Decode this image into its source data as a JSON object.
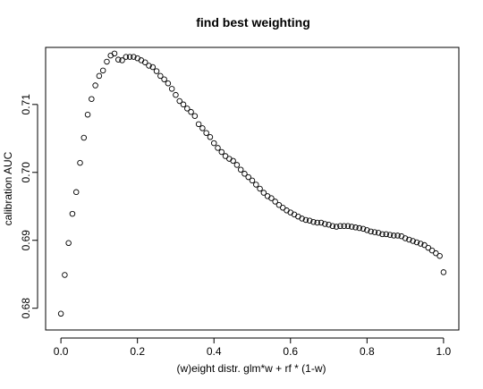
{
  "chart_data": {
    "type": "scatter",
    "title": "find best weighting",
    "xlabel": "(w)eight distr.  glm*w + rf * (1-w)",
    "ylabel": "calibration AUC",
    "xlim": [
      -0.04,
      1.04
    ],
    "ylim": [
      0.6768,
      0.7184
    ],
    "x_ticks": [
      0.0,
      0.2,
      0.4,
      0.6,
      0.8,
      1.0
    ],
    "x_tick_labels": [
      "0.0",
      "0.2",
      "0.4",
      "0.6",
      "0.8",
      "1.0"
    ],
    "y_ticks": [
      0.68,
      0.69,
      0.7,
      0.71
    ],
    "y_tick_labels": [
      "0.68",
      "0.69",
      "0.70",
      "0.71"
    ],
    "grid": false,
    "marker": "open-circle",
    "x": [
      0.0,
      0.01,
      0.02,
      0.03,
      0.04,
      0.05,
      0.06,
      0.07,
      0.08,
      0.09,
      0.1,
      0.11,
      0.12,
      0.13,
      0.14,
      0.15,
      0.16,
      0.17,
      0.18,
      0.19,
      0.2,
      0.21,
      0.22,
      0.23,
      0.24,
      0.25,
      0.26,
      0.27,
      0.28,
      0.29,
      0.3,
      0.31,
      0.32,
      0.33,
      0.34,
      0.35,
      0.36,
      0.37,
      0.38,
      0.39,
      0.4,
      0.41,
      0.42,
      0.43,
      0.44,
      0.45,
      0.46,
      0.47,
      0.48,
      0.49,
      0.5,
      0.51,
      0.52,
      0.53,
      0.54,
      0.55,
      0.56,
      0.57,
      0.58,
      0.59,
      0.6,
      0.61,
      0.62,
      0.63,
      0.64,
      0.65,
      0.66,
      0.67,
      0.68,
      0.69,
      0.7,
      0.71,
      0.72,
      0.73,
      0.74,
      0.75,
      0.76,
      0.77,
      0.78,
      0.79,
      0.8,
      0.81,
      0.82,
      0.83,
      0.84,
      0.85,
      0.86,
      0.87,
      0.88,
      0.89,
      0.9,
      0.91,
      0.92,
      0.93,
      0.94,
      0.95,
      0.96,
      0.97,
      0.98,
      0.99,
      1.0
    ],
    "y": [
      0.6792,
      0.6849,
      0.6896,
      0.6939,
      0.6971,
      0.7014,
      0.7051,
      0.7085,
      0.7108,
      0.7128,
      0.7142,
      0.715,
      0.7163,
      0.7172,
      0.7175,
      0.7166,
      0.7165,
      0.717,
      0.717,
      0.717,
      0.7168,
      0.7165,
      0.7162,
      0.7157,
      0.7155,
      0.7149,
      0.7142,
      0.7137,
      0.7131,
      0.7123,
      0.7114,
      0.7105,
      0.71,
      0.7094,
      0.7089,
      0.7083,
      0.7071,
      0.7065,
      0.7058,
      0.7052,
      0.7043,
      0.7036,
      0.703,
      0.7024,
      0.702,
      0.7017,
      0.7011,
      0.7004,
      0.6998,
      0.6993,
      0.6988,
      0.6982,
      0.6976,
      0.697,
      0.6965,
      0.6962,
      0.6957,
      0.6952,
      0.6948,
      0.6944,
      0.6941,
      0.6938,
      0.6935,
      0.6932,
      0.693,
      0.6929,
      0.6927,
      0.6926,
      0.6926,
      0.6924,
      0.6923,
      0.6921,
      0.692,
      0.6921,
      0.6921,
      0.6921,
      0.692,
      0.6919,
      0.6918,
      0.6917,
      0.6915,
      0.6913,
      0.6912,
      0.6911,
      0.6909,
      0.6909,
      0.6908,
      0.6907,
      0.6907,
      0.6906,
      0.6903,
      0.6901,
      0.6899,
      0.6897,
      0.6895,
      0.6893,
      0.6889,
      0.6885,
      0.6881,
      0.6877,
      0.6853
    ]
  }
}
